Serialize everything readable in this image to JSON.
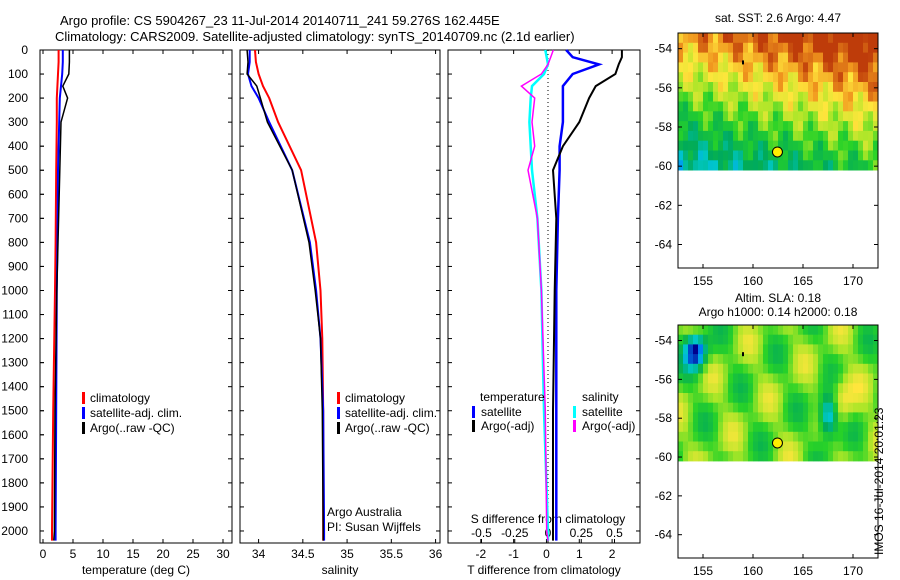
{
  "title_line1": "Argo profile: CS 5904267_23 11-Jul-2014 20140711_241 59.276S 162.445E",
  "title_line2": "Climatology: CARS2009. Satellite-adjusted climatology: synTS_20140709.nc (2.1d earlier)",
  "colors": {
    "climatology": "#ff0000",
    "satellite": "#0000ff",
    "argo": "#000000",
    "sal_satellite": "#00ffff",
    "sal_argo": "#ff00ff"
  },
  "chart_data": [
    {
      "type": "line",
      "xlabel": "temperature (deg C)",
      "ylabel": "",
      "xlim": [
        -0.5,
        31.5
      ],
      "ylim": [
        2050,
        0
      ],
      "xticks": [
        "0",
        "5",
        "10",
        "15",
        "20",
        "25",
        "30"
      ],
      "yticks": [
        "0",
        "100",
        "200",
        "300",
        "400",
        "500",
        "600",
        "700",
        "800",
        "900",
        "1000",
        "1100",
        "1200",
        "1300",
        "1400",
        "1500",
        "1600",
        "1700",
        "1800",
        "1900",
        "2000"
      ],
      "legend": [
        "climatology",
        "satellite-adj. clim.",
        "Argo(..raw -QC)"
      ],
      "depth": [
        0,
        50,
        100,
        150,
        200,
        300,
        500,
        800,
        1000,
        1500,
        2000,
        2040
      ],
      "series": [
        {
          "name": "climatology",
          "values": [
            2.6,
            2.6,
            2.5,
            2.4,
            2.3,
            2.3,
            2.2,
            2.1,
            2.0,
            1.7,
            1.5,
            1.5
          ]
        },
        {
          "name": "satellite-adj. clim.",
          "values": [
            3.3,
            3.3,
            3.2,
            3.0,
            2.8,
            2.7,
            2.5,
            2.4,
            2.3,
            2.2,
            2.1,
            2.1
          ]
        },
        {
          "name": "Argo(..raw -QC)",
          "values": [
            4.4,
            4.4,
            4.3,
            3.3,
            4.1,
            3.0,
            2.8,
            2.5,
            2.3,
            2.0,
            1.9,
            1.8
          ]
        }
      ]
    },
    {
      "type": "line",
      "xlabel": "salinity",
      "xlim": [
        33.79,
        36.05
      ],
      "ylim": [
        2050,
        0
      ],
      "xticks": [
        "34",
        "34.5",
        "35",
        "35.5",
        "36"
      ],
      "legend": [
        "climatology",
        "satellite-adj. clim.",
        "Argo(..raw -QC)"
      ],
      "annotation": [
        "Argo Australia",
        "PI: Susan Wijffels"
      ],
      "depth": [
        0,
        50,
        100,
        150,
        200,
        300,
        500,
        800,
        1000,
        1200,
        1500,
        2000,
        2040
      ],
      "series": [
        {
          "name": "climatology",
          "values": [
            33.96,
            33.97,
            34.0,
            34.05,
            34.12,
            34.22,
            34.48,
            34.65,
            34.7,
            34.72,
            34.73,
            34.73,
            34.73
          ]
        },
        {
          "name": "satellite-adj. clim.",
          "values": [
            33.9,
            33.9,
            33.88,
            33.92,
            34.0,
            34.12,
            34.38,
            34.58,
            34.65,
            34.7,
            34.73,
            34.74,
            34.74
          ]
        },
        {
          "name": "Argo(..raw -QC)",
          "values": [
            33.87,
            33.88,
            33.87,
            33.98,
            34.02,
            34.1,
            34.38,
            34.57,
            34.64,
            34.7,
            34.72,
            34.73,
            34.73
          ]
        }
      ]
    },
    {
      "type": "line",
      "xlabel": "T difference from climatology",
      "xlabel2": "S difference from climatology",
      "xlim": [
        -3.0,
        2.85
      ],
      "ylim": [
        2050,
        0
      ],
      "xticks": [
        "-2",
        "-1",
        "0",
        "1",
        "2"
      ],
      "xticks2": [
        "-0.5",
        "-0.25",
        "0",
        "0.25",
        "0.5"
      ],
      "legend_temperature": {
        "title": "temperature",
        "items": [
          "satellite",
          "Argo(-adj)"
        ]
      },
      "legend_salinity": {
        "title": "salinity",
        "items": [
          "satellite",
          "Argo(-adj)"
        ]
      },
      "depth": [
        0,
        30,
        60,
        100,
        150,
        200,
        300,
        400,
        500,
        700,
        1000,
        1500,
        2000,
        2040
      ],
      "series": [
        {
          "name": "temperature satellite",
          "values": [
            0.6,
            0.8,
            1.6,
            0.8,
            0.5,
            0.5,
            0.5,
            0.4,
            0.4,
            0.35,
            0.3,
            0.3,
            0.3,
            0.3
          ]
        },
        {
          "name": "temperature Argo(-adj)",
          "values": [
            2.3,
            2.3,
            2.2,
            2.1,
            1.5,
            1.3,
            1.0,
            0.5,
            0.2,
            0.3,
            0.25,
            0.2,
            0.2,
            0.2
          ]
        },
        {
          "name": "salinity satellite",
          "values": [
            -0.02,
            -0.01,
            0.0,
            -0.03,
            -0.12,
            -0.13,
            -0.14,
            -0.13,
            -0.12,
            -0.08,
            -0.05,
            -0.03,
            0.0,
            0.0
          ]
        },
        {
          "name": "salinity Argo(-adj)",
          "values": [
            0.04,
            0.02,
            0.0,
            -0.05,
            -0.2,
            -0.1,
            -0.12,
            -0.1,
            -0.15,
            -0.08,
            -0.05,
            -0.02,
            -0.01,
            0.0
          ]
        }
      ]
    },
    {
      "type": "heatmap",
      "title": "sat. SST: 2.6 Argo: 4.47",
      "xlim": [
        152.5,
        172.5
      ],
      "ylim": [
        -65.2,
        -53.2
      ],
      "xticks": [
        "155",
        "160",
        "165",
        "170"
      ],
      "yticks": [
        "-54",
        "-56",
        "-58",
        "-60",
        "-62",
        "-64"
      ],
      "argo_position": [
        162.445,
        -59.276
      ]
    },
    {
      "type": "heatmap",
      "title": "Altim. SLA: 0.18",
      "subtitle": "Argo h1000: 0.14 h2000: 0.18",
      "xlim": [
        152.5,
        172.5
      ],
      "ylim": [
        -65.2,
        -53.2
      ],
      "xticks": [
        "155",
        "160",
        "165",
        "170"
      ],
      "yticks": [
        "-54",
        "-56",
        "-58",
        "-60",
        "-62",
        "-64"
      ],
      "argo_position": [
        162.445,
        -59.276
      ]
    }
  ],
  "footer": "IMOS 16-Jul-2014 20:01:23"
}
